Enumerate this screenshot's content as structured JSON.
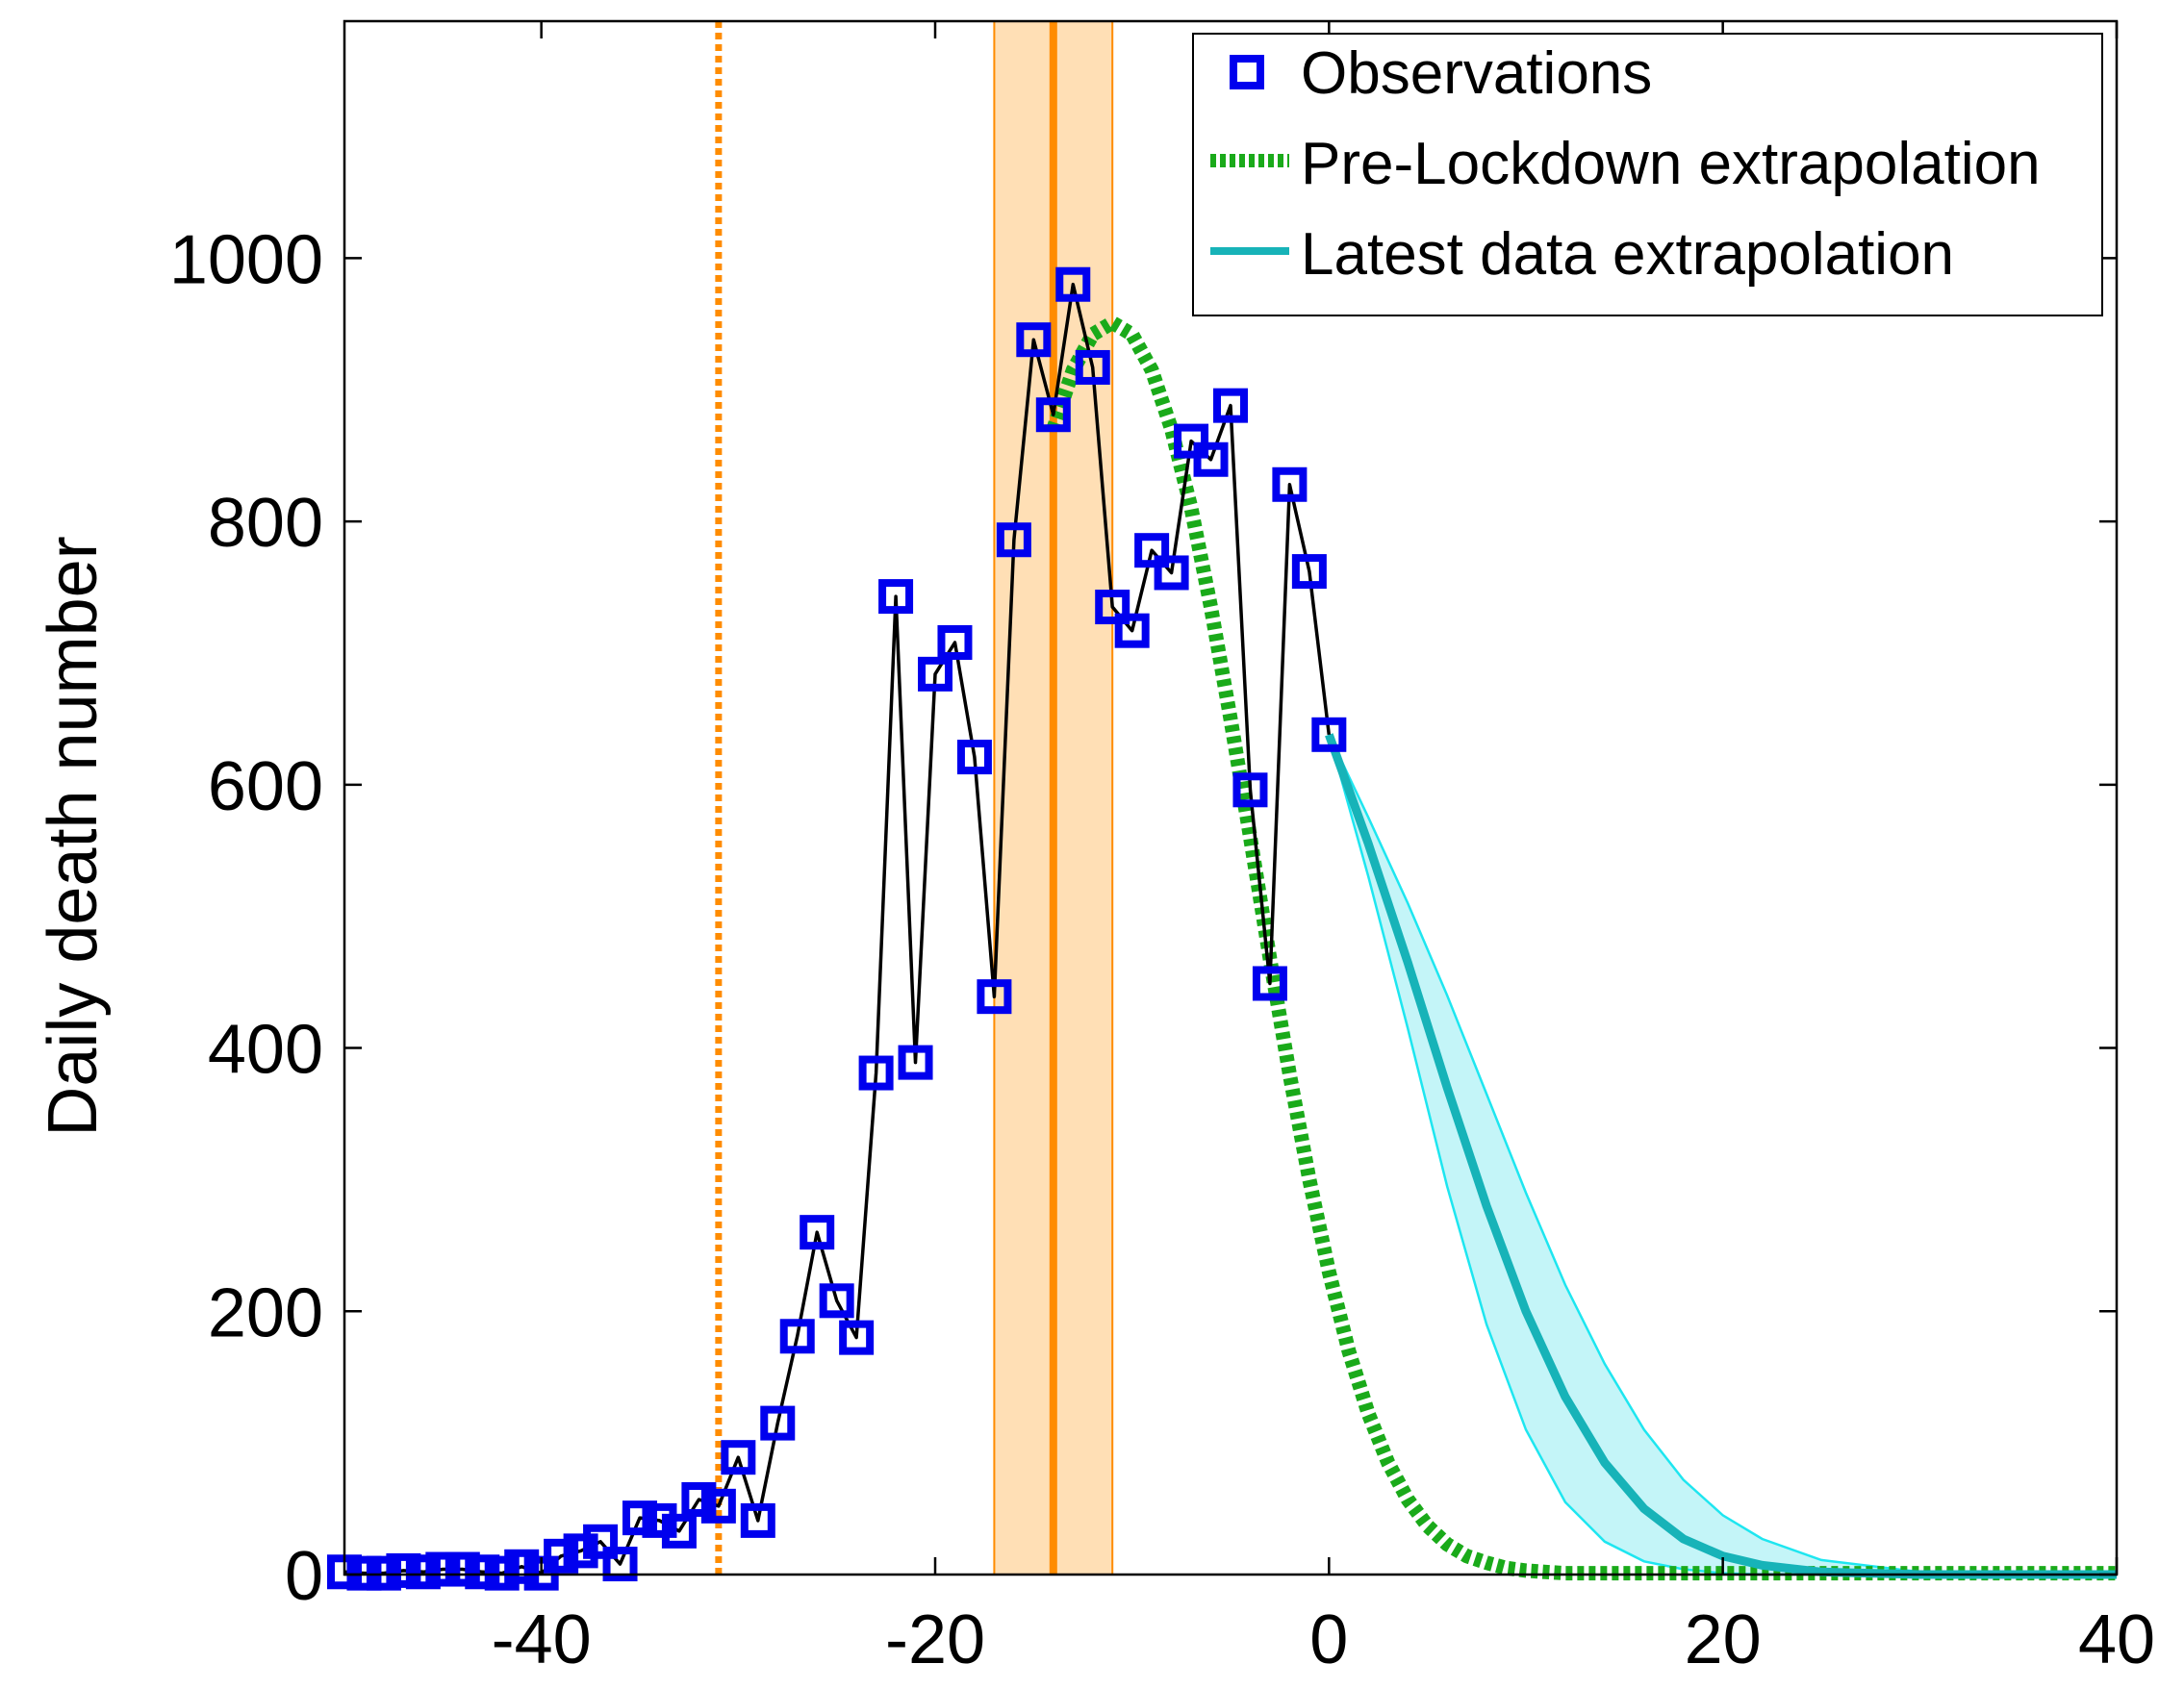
{
  "chart_data": {
    "type": "line",
    "title": "",
    "xlabel": "",
    "ylabel": "Daily death number",
    "xlim": [
      -50,
      40
    ],
    "ylim": [
      0,
      1180
    ],
    "xticks": [
      -40,
      -20,
      0,
      20,
      40
    ],
    "yticks": [
      0,
      200,
      400,
      600,
      800,
      1000
    ],
    "x_tick_labels": [
      "-40",
      "-20",
      "0",
      "20",
      "40"
    ],
    "y_tick_labels": [
      "0",
      "200",
      "400",
      "600",
      "800",
      "1000"
    ],
    "grid": false,
    "legend_position": "top-right",
    "legend": [
      {
        "label": "Observations",
        "style": "square-marker"
      },
      {
        "label": "Pre-Lockdown extrapolation",
        "style": "dotted"
      },
      {
        "label": "Latest data extrapolation",
        "style": "solid"
      }
    ],
    "colors": {
      "observations": "#0000ee",
      "observations_line": "#000000",
      "pre_lockdown": "#1aaa1a",
      "latest": "#17b3b8",
      "latest_band_fill": "#c4f5f8",
      "latest_band_edge": "#1ee6f0",
      "lockdown_line": "#ff8c00",
      "lockdown_band": "#ffdfb5"
    },
    "lockdown_dotted_x": -31,
    "lockdown_line_x": -14,
    "lockdown_band_x": [
      -17,
      -11
    ],
    "observations": {
      "x": [
        -50,
        -49,
        -48,
        -47,
        -46,
        -45,
        -44,
        -43,
        -42,
        -41,
        -40,
        -39,
        -38,
        -37,
        -36,
        -35,
        -34,
        -33,
        -32,
        -31,
        -30,
        -29,
        -28,
        -27,
        -26,
        -25,
        -24,
        -23,
        -22,
        -21,
        -20,
        -19,
        -18,
        -17,
        -16,
        -15,
        -14,
        -13,
        -12,
        -11,
        -10,
        -9,
        -8,
        -7,
        -6,
        -5,
        -4,
        -3,
        -2,
        -1,
        0
      ],
      "y": [
        2,
        1,
        1,
        3,
        2,
        4,
        4,
        2,
        1,
        6,
        1,
        14,
        18,
        25,
        8,
        43,
        41,
        33,
        57,
        52,
        89,
        41,
        115,
        181,
        260,
        208,
        180,
        381,
        743,
        389,
        684,
        708,
        621,
        439,
        786,
        938,
        881,
        980,
        917,
        735,
        717,
        778,
        761,
        861,
        847,
        888,
        596,
        449,
        828,
        762,
        638
      ]
    },
    "pre_lockdown_extrapolation": {
      "x": [
        -14,
        -13,
        -12,
        -11,
        -10,
        -9,
        -8,
        -7,
        -6,
        -5,
        -4,
        -3,
        -2,
        -1,
        0,
        1,
        2,
        3,
        4,
        5,
        6,
        7,
        8,
        9,
        10,
        11,
        12,
        13,
        14,
        15,
        16,
        18,
        20,
        25,
        30,
        35,
        40
      ],
      "y": [
        870,
        915,
        942,
        951,
        942,
        915,
        870,
        810,
        735,
        650,
        560,
        468,
        380,
        300,
        230,
        170,
        122,
        85,
        57,
        37,
        23,
        14,
        9,
        5,
        3,
        2,
        1,
        1,
        1,
        1,
        1,
        1,
        1,
        1,
        1,
        1,
        1
      ]
    },
    "latest_data_extrapolation": {
      "x": [
        0,
        2,
        4,
        6,
        8,
        10,
        12,
        14,
        16,
        18,
        20,
        22,
        25,
        30,
        35,
        40
      ],
      "y": [
        638,
        555,
        465,
        370,
        280,
        200,
        135,
        85,
        50,
        27,
        14,
        7,
        2,
        0,
        0,
        0
      ],
      "lower": [
        638,
        530,
        415,
        295,
        190,
        110,
        55,
        25,
        10,
        4,
        1,
        0,
        0,
        0,
        0,
        0
      ],
      "upper": [
        638,
        575,
        510,
        440,
        365,
        290,
        220,
        160,
        110,
        72,
        45,
        27,
        11,
        2,
        0,
        0
      ]
    }
  }
}
